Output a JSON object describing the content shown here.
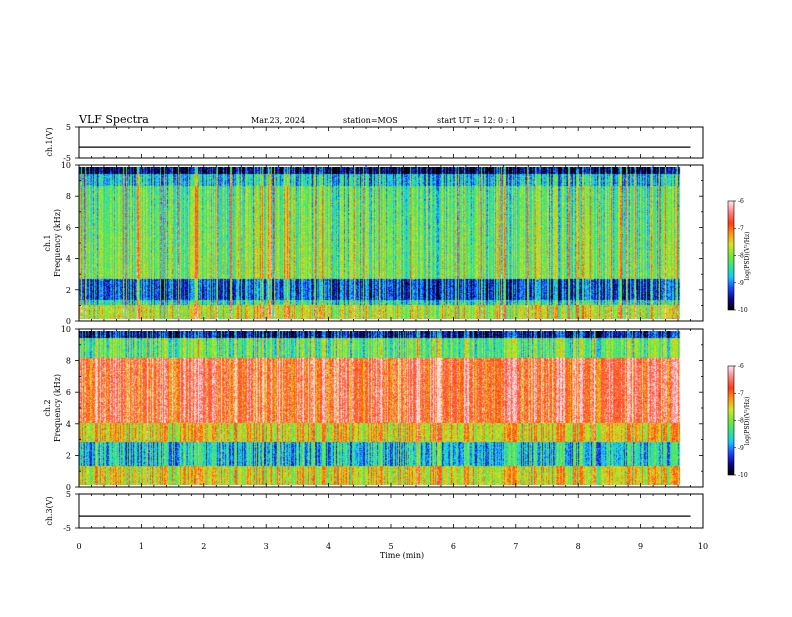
{
  "header": {
    "title": "VLF Spectra",
    "date": "Mar.23, 2024",
    "station": "station=MOS",
    "start_ut": "start  UT =   12: 0  : 1"
  },
  "colors": {
    "black": "#000000",
    "white": "#ffffff",
    "spectrum": [
      "#000000",
      "#0a0a8c",
      "#1e46ff",
      "#14c8ff",
      "#32e68c",
      "#7ce632",
      "#d2e628",
      "#ff9614",
      "#ff3c14",
      "#ff8282",
      "#ffe6e6"
    ]
  },
  "chart_data": [
    {
      "type": "line",
      "name": "panel-ch1-voltage",
      "ylabel": "ch.1(V)",
      "ylim": [
        -5,
        5
      ],
      "yticks": [
        "5",
        "-5"
      ],
      "xlim": [
        0,
        10
      ],
      "series": [
        {
          "values_description": "flat trace at about -1.5 V across 0–9.8 min",
          "level": -1.5
        }
      ]
    },
    {
      "type": "heatmap",
      "name": "panel-ch1-spectrogram",
      "ylabel": "ch.1",
      "ylabel2": "Frequency (kHz)",
      "ylim": [
        0,
        10
      ],
      "yticks": [
        "0",
        "2",
        "4",
        "6",
        "8",
        "10"
      ],
      "xlim": [
        0,
        10
      ],
      "data_xmax": 9.8,
      "colorbar": {
        "label": "log(PSD)(V²/Hz)",
        "range": [
          -10,
          -6
        ],
        "ticks": [
          "-6",
          "-7",
          "-8",
          "-9",
          "-10"
        ]
      }
    },
    {
      "type": "heatmap",
      "name": "panel-ch2-spectrogram",
      "ylabel": "ch.2",
      "ylabel2": "Frequency (kHz)",
      "ylim": [
        0,
        10
      ],
      "yticks": [
        "0",
        "2",
        "4",
        "6",
        "8",
        "10"
      ],
      "xlim": [
        0,
        10
      ],
      "data_xmax": 9.8,
      "colorbar": {
        "label": "log(PSD)(V²/Hz)",
        "range": [
          -10,
          -6
        ],
        "ticks": [
          "-6",
          "-7",
          "-8",
          "-9",
          "-10"
        ]
      }
    },
    {
      "type": "line",
      "name": "panel-ch3-voltage",
      "ylabel": "ch.3(V)",
      "ylim": [
        -5,
        5
      ],
      "yticks": [
        "5",
        "-5"
      ],
      "xlim": [
        0,
        10
      ],
      "series": [
        {
          "values_description": "flat trace at about -1.5 V across 0–9.8 min",
          "level": -1.5
        }
      ]
    }
  ],
  "xaxis": {
    "label": "Time (min)",
    "ticks": [
      "0",
      "1",
      "2",
      "3",
      "4",
      "5",
      "6",
      "7",
      "8",
      "9",
      "10"
    ]
  }
}
